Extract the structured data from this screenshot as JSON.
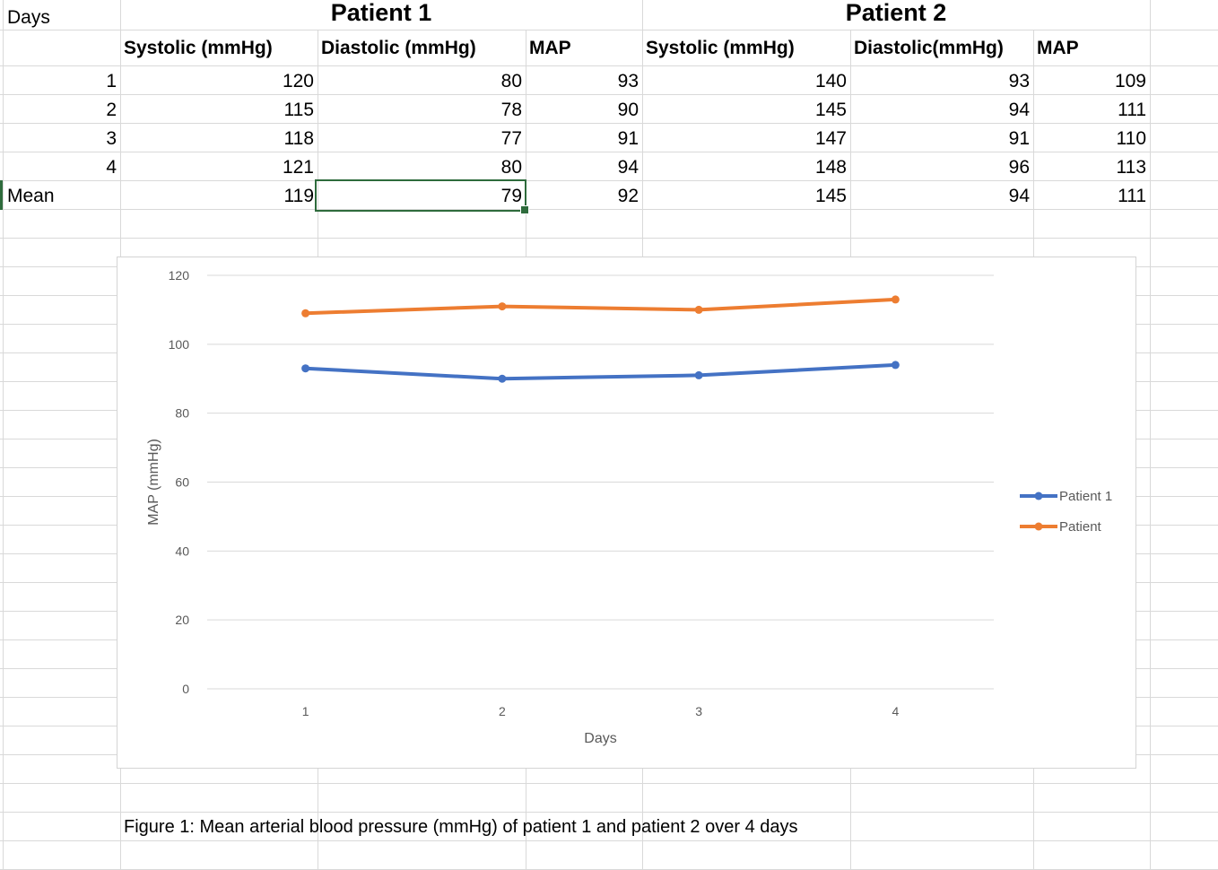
{
  "sheet": {
    "title_days": "Days",
    "patient1_header": "Patient 1",
    "patient2_header": "Patient 2",
    "columns": [
      "Systolic (mmHg)",
      "Diastolic (mmHg)",
      "MAP",
      "Systolic (mmHg)",
      "Diastolic(mmHg)",
      "MAP"
    ],
    "rows": [
      {
        "day": "1",
        "values": [
          "120",
          "80",
          "93",
          "140",
          "93",
          "109"
        ]
      },
      {
        "day": "2",
        "values": [
          "115",
          "78",
          "90",
          "145",
          "94",
          "111"
        ]
      },
      {
        "day": "3",
        "values": [
          "118",
          "77",
          "91",
          "147",
          "91",
          "110"
        ]
      },
      {
        "day": "4",
        "values": [
          "121",
          "80",
          "94",
          "148",
          "96",
          "113"
        ]
      },
      {
        "day": "Mean",
        "values": [
          "119",
          "79",
          "92",
          "145",
          "94",
          "111"
        ]
      }
    ],
    "selected_cell": "Mean / Diastolic (mmHg)",
    "caption": "Figure 1: Mean arterial blood pressure (mmHg) of patient 1 and patient 2 over 4 days"
  },
  "colors": {
    "gridline": "#d9d9d9",
    "selection": "#2e6b3c",
    "series1": "#4472c4",
    "series2": "#ed7d31",
    "chart_gridline": "#d9d9d9",
    "axis_text": "#595959"
  },
  "chart_data": {
    "type": "line",
    "categories": [
      "1",
      "2",
      "3",
      "4"
    ],
    "series": [
      {
        "name": "Patient 1",
        "values": [
          93,
          90,
          91,
          94
        ]
      },
      {
        "name": "Patient",
        "values": [
          109,
          111,
          110,
          113
        ]
      }
    ],
    "xlabel": "Days",
    "ylabel": "MAP (mmHg)",
    "ylim": [
      0,
      120
    ],
    "yticks": [
      "0",
      "20",
      "40",
      "60",
      "80",
      "100",
      "120"
    ],
    "grid": true,
    "legend": "right"
  }
}
